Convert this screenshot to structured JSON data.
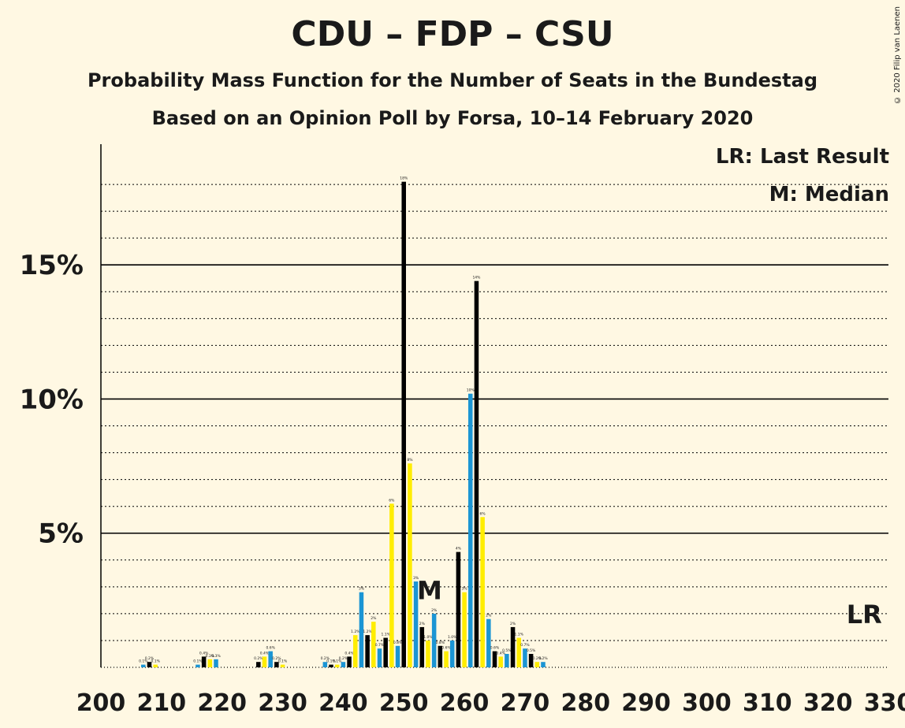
{
  "title": "CDU – FDP – CSU",
  "subtitle": "Probability Mass Function for the Number of Seats in the Bundestag",
  "subtitle2": "Based on an Opinion Poll by Forsa, 10–14 February 2020",
  "copyright": "© 2020 Filip van Laenen",
  "legend": {
    "last_result": "LR: Last Result",
    "median": "M: Median"
  },
  "colors": {
    "background": "#fff8e3",
    "black": "#000000",
    "yellow": "#ffed00",
    "blue": "#1b95d4"
  },
  "chart_data": {
    "type": "bar",
    "x_ticks": [
      200,
      210,
      220,
      230,
      240,
      250,
      260,
      270,
      280,
      290,
      300,
      310,
      320,
      330
    ],
    "y_ticks": [
      "5%",
      "10%",
      "15%"
    ],
    "y_tick_values": [
      5,
      10,
      15
    ],
    "xlim": [
      200,
      330
    ],
    "ylim": [
      0,
      19.5
    ],
    "median_seat": 254,
    "median_label": "M",
    "last_result_seat": 326,
    "last_result_label": "LR",
    "bar_color_cycle": [
      "blue",
      "black",
      "yellow"
    ],
    "x": [
      207,
      208,
      209,
      216,
      217,
      218,
      219,
      226,
      227,
      228,
      229,
      230,
      237,
      238,
      239,
      240,
      241,
      242,
      243,
      244,
      245,
      246,
      247,
      248,
      249,
      250,
      251,
      252,
      253,
      254,
      255,
      256,
      257,
      258,
      259,
      260,
      261,
      262,
      263,
      264,
      265,
      266,
      267,
      268,
      269,
      270,
      271,
      272,
      273
    ],
    "values": [
      0.1,
      0.2,
      0.1,
      0.1,
      0.4,
      0.3,
      0.3,
      0.2,
      0.4,
      0.6,
      0.2,
      0.1,
      0.2,
      0.1,
      0.1,
      0.2,
      0.4,
      1.2,
      2.8,
      1.2,
      1.7,
      0.7,
      1.1,
      6.1,
      0.8,
      18.1,
      7.6,
      3.2,
      1.5,
      1.0,
      2.0,
      0.8,
      0.6,
      1.0,
      4.3,
      2.8,
      10.2,
      14.4,
      5.6,
      1.8,
      0.6,
      0.4,
      0.5,
      1.5,
      1.1,
      0.7,
      0.5,
      0.2,
      0.2
    ],
    "labels": [
      "0.1%",
      "0.2%",
      "0.1%",
      "0.1%",
      "0.4%",
      "0.3%",
      "0.3%",
      "0.2%",
      "0.4%",
      "0.6%",
      "0.2%",
      "0.1%",
      "0.2%",
      "0.1%",
      "0.1%",
      "0.2%",
      "0.4%",
      "1.2%",
      "3%",
      "1.2%",
      "2%",
      "0.7%",
      "1.1%",
      "6%",
      "0.8%",
      "18%",
      "8%",
      "3%",
      "2%",
      "1.0%",
      "2%",
      "0.8%",
      "0.6%",
      "1.0%",
      "4%",
      "3%",
      "10%",
      "14%",
      "6%",
      "2%",
      "0.6%",
      "0.4%",
      "0.5%",
      "2%",
      "1.1%",
      "0.7%",
      "0.5%",
      "0.2%",
      "0.2%"
    ]
  }
}
